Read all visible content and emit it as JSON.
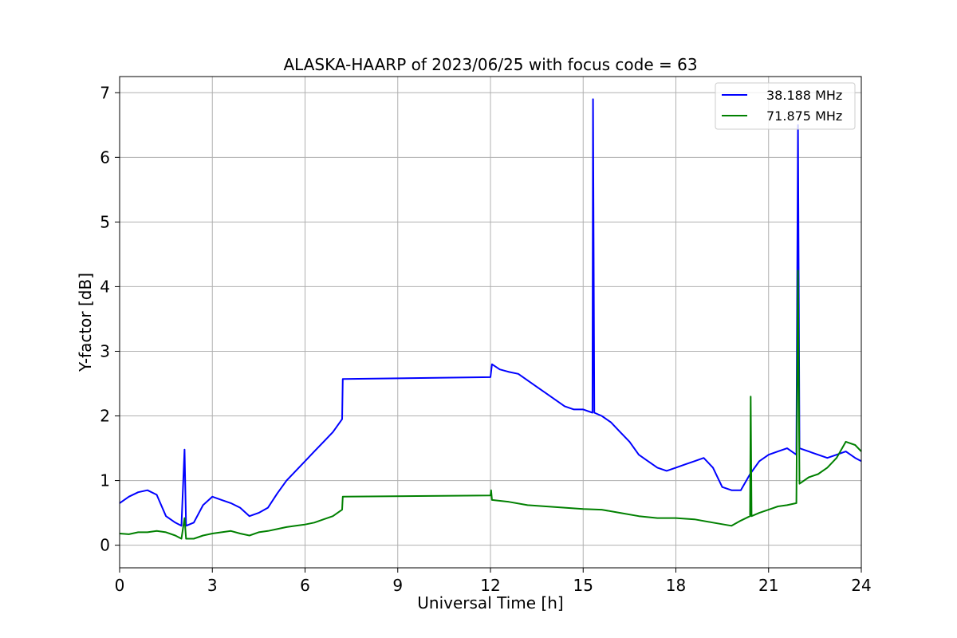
{
  "chart_data": {
    "type": "line",
    "title": "ALASKA-HAARP of 2023/06/25 with focus code = 63",
    "xlabel": "Universal Time [h]",
    "ylabel": "Y-factor [dB]",
    "xlim": [
      0,
      24
    ],
    "ylim": [
      -0.35,
      7.25
    ],
    "xticks": [
      0,
      3,
      6,
      9,
      12,
      15,
      18,
      21,
      24
    ],
    "yticks": [
      0,
      1,
      2,
      3,
      4,
      5,
      6,
      7
    ],
    "grid": true,
    "legend": "top-right",
    "series": [
      {
        "name": "38.188 MHz",
        "color": "#0000ff",
        "points": [
          [
            0,
            0.65
          ],
          [
            0.3,
            0.75
          ],
          [
            0.6,
            0.82
          ],
          [
            0.9,
            0.85
          ],
          [
            1.2,
            0.78
          ],
          [
            1.5,
            0.45
          ],
          [
            1.8,
            0.35
          ],
          [
            2.0,
            0.3
          ],
          [
            2.1,
            1.48
          ],
          [
            2.15,
            0.3
          ],
          [
            2.4,
            0.35
          ],
          [
            2.7,
            0.62
          ],
          [
            3.0,
            0.75
          ],
          [
            3.3,
            0.7
          ],
          [
            3.6,
            0.65
          ],
          [
            3.9,
            0.58
          ],
          [
            4.2,
            0.45
          ],
          [
            4.5,
            0.5
          ],
          [
            4.8,
            0.58
          ],
          [
            5.1,
            0.8
          ],
          [
            5.4,
            1.0
          ],
          [
            5.7,
            1.15
          ],
          [
            6.0,
            1.3
          ],
          [
            6.3,
            1.45
          ],
          [
            6.6,
            1.6
          ],
          [
            6.9,
            1.75
          ],
          [
            7.2,
            1.95
          ],
          [
            7.22,
            2.57
          ],
          [
            12.0,
            2.6
          ],
          [
            12.05,
            2.8
          ],
          [
            12.3,
            2.72
          ],
          [
            12.6,
            2.68
          ],
          [
            12.9,
            2.65
          ],
          [
            13.2,
            2.55
          ],
          [
            13.5,
            2.45
          ],
          [
            13.8,
            2.35
          ],
          [
            14.1,
            2.25
          ],
          [
            14.4,
            2.15
          ],
          [
            14.7,
            2.1
          ],
          [
            15.0,
            2.1
          ],
          [
            15.3,
            2.05
          ],
          [
            15.32,
            6.9
          ],
          [
            15.36,
            2.05
          ],
          [
            15.6,
            2.0
          ],
          [
            15.9,
            1.9
          ],
          [
            16.2,
            1.75
          ],
          [
            16.5,
            1.6
          ],
          [
            16.8,
            1.4
          ],
          [
            17.1,
            1.3
          ],
          [
            17.4,
            1.2
          ],
          [
            17.7,
            1.15
          ],
          [
            18.0,
            1.2
          ],
          [
            18.3,
            1.25
          ],
          [
            18.6,
            1.3
          ],
          [
            18.9,
            1.35
          ],
          [
            19.2,
            1.2
          ],
          [
            19.5,
            0.9
          ],
          [
            19.8,
            0.85
          ],
          [
            20.1,
            0.85
          ],
          [
            20.4,
            1.1
          ],
          [
            20.7,
            1.3
          ],
          [
            21.0,
            1.4
          ],
          [
            21.3,
            1.45
          ],
          [
            21.6,
            1.5
          ],
          [
            21.9,
            1.4
          ],
          [
            21.95,
            6.5
          ],
          [
            22.0,
            1.5
          ],
          [
            22.3,
            1.45
          ],
          [
            22.6,
            1.4
          ],
          [
            22.9,
            1.35
          ],
          [
            23.2,
            1.4
          ],
          [
            23.5,
            1.45
          ],
          [
            23.8,
            1.35
          ],
          [
            24.0,
            1.3
          ]
        ]
      },
      {
        "name": "71.875 MHz",
        "color": "#008000",
        "points": [
          [
            0,
            0.18
          ],
          [
            0.3,
            0.17
          ],
          [
            0.6,
            0.2
          ],
          [
            0.9,
            0.2
          ],
          [
            1.2,
            0.22
          ],
          [
            1.5,
            0.2
          ],
          [
            1.8,
            0.15
          ],
          [
            2.0,
            0.1
          ],
          [
            2.1,
            0.42
          ],
          [
            2.15,
            0.1
          ],
          [
            2.4,
            0.1
          ],
          [
            2.7,
            0.15
          ],
          [
            3.0,
            0.18
          ],
          [
            3.3,
            0.2
          ],
          [
            3.6,
            0.22
          ],
          [
            3.9,
            0.18
          ],
          [
            4.2,
            0.15
          ],
          [
            4.5,
            0.2
          ],
          [
            4.8,
            0.22
          ],
          [
            5.1,
            0.25
          ],
          [
            5.4,
            0.28
          ],
          [
            5.7,
            0.3
          ],
          [
            6.0,
            0.32
          ],
          [
            6.3,
            0.35
          ],
          [
            6.6,
            0.4
          ],
          [
            6.9,
            0.45
          ],
          [
            7.2,
            0.55
          ],
          [
            7.22,
            0.75
          ],
          [
            12.0,
            0.77
          ],
          [
            12.02,
            0.85
          ],
          [
            12.05,
            0.7
          ],
          [
            12.6,
            0.67
          ],
          [
            13.2,
            0.62
          ],
          [
            13.8,
            0.6
          ],
          [
            14.4,
            0.58
          ],
          [
            15.0,
            0.56
          ],
          [
            15.6,
            0.55
          ],
          [
            16.2,
            0.5
          ],
          [
            16.8,
            0.45
          ],
          [
            17.4,
            0.42
          ],
          [
            18.0,
            0.42
          ],
          [
            18.6,
            0.4
          ],
          [
            19.2,
            0.35
          ],
          [
            19.8,
            0.3
          ],
          [
            20.1,
            0.38
          ],
          [
            20.4,
            0.45
          ],
          [
            20.42,
            2.3
          ],
          [
            20.45,
            0.45
          ],
          [
            20.7,
            0.5
          ],
          [
            21.0,
            0.55
          ],
          [
            21.3,
            0.6
          ],
          [
            21.6,
            0.62
          ],
          [
            21.9,
            0.65
          ],
          [
            21.95,
            4.25
          ],
          [
            22.0,
            0.95
          ],
          [
            22.3,
            1.05
          ],
          [
            22.6,
            1.1
          ],
          [
            22.9,
            1.2
          ],
          [
            23.2,
            1.35
          ],
          [
            23.5,
            1.6
          ],
          [
            23.8,
            1.55
          ],
          [
            24.0,
            1.45
          ]
        ]
      }
    ]
  }
}
